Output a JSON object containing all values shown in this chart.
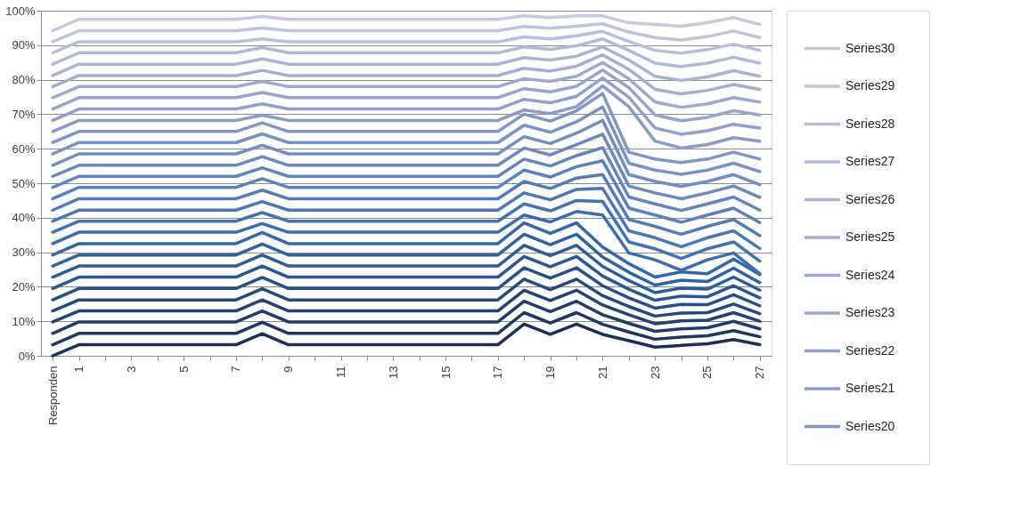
{
  "chart_data": {
    "type": "line",
    "categories": [
      "Responden",
      "1",
      null,
      "3",
      null,
      "5",
      null,
      "7",
      null,
      "9",
      null,
      "11",
      null,
      "13",
      null,
      "15",
      null,
      "17",
      null,
      "19",
      null,
      "21",
      null,
      "23",
      null,
      "25",
      null,
      "27"
    ],
    "ylim": [
      0,
      100
    ],
    "yticks": [
      {
        "value": 0,
        "label": "0%"
      },
      {
        "value": 10,
        "label": "10%"
      },
      {
        "value": 20,
        "label": "20%"
      },
      {
        "value": 30,
        "label": "30%"
      },
      {
        "value": 40,
        "label": "40%"
      },
      {
        "value": 50,
        "label": "50%"
      },
      {
        "value": 60,
        "label": "60%"
      },
      {
        "value": 70,
        "label": "70%"
      },
      {
        "value": 80,
        "label": "80%"
      },
      {
        "value": 90,
        "label": "90%"
      },
      {
        "value": 100,
        "label": "100%"
      }
    ],
    "grid": "y",
    "legend": "right",
    "series": [
      {
        "color": "#1c2f5a",
        "values": [
          0,
          3.2,
          3.2,
          3.2,
          3.2,
          3.2,
          3.2,
          3.2,
          6.4,
          3.2,
          3.2,
          3.2,
          3.2,
          3.2,
          3.2,
          3.2,
          3.2,
          3.2,
          9.2,
          6.2,
          9.2,
          6.2,
          4.4,
          2.5,
          3.0,
          3.5,
          4.7,
          3.2
        ]
      },
      {
        "color": "#1f3562",
        "values": [
          3.2,
          6.5,
          6.5,
          6.5,
          6.5,
          6.5,
          6.5,
          6.5,
          9.7,
          6.5,
          6.5,
          6.5,
          6.5,
          6.5,
          6.5,
          6.5,
          6.5,
          6.5,
          12.5,
          9.5,
          12.5,
          9.1,
          6.9,
          4.8,
          5.4,
          5.8,
          7.3,
          5.5
        ]
      },
      {
        "color": "#213b6b",
        "values": [
          6.5,
          9.8,
          9.8,
          9.8,
          9.8,
          9.8,
          9.8,
          9.8,
          13,
          9.8,
          9.8,
          9.8,
          9.8,
          9.8,
          9.8,
          9.8,
          9.8,
          9.8,
          15.8,
          12.8,
          15.8,
          11.9,
          9.4,
          7.1,
          7.8,
          8.1,
          10,
          7.8
        ]
      },
      {
        "color": "#244274",
        "values": [
          9.8,
          13,
          13,
          13,
          13,
          13,
          13,
          13,
          16.2,
          13,
          13,
          13,
          13,
          13,
          13,
          13,
          13,
          13,
          19,
          16,
          19,
          14.7,
          11.9,
          9.3,
          10.1,
          10.3,
          12.5,
          10
        ]
      },
      {
        "color": "#26497d",
        "values": [
          13,
          16.2,
          16.2,
          16.2,
          16.2,
          16.2,
          16.2,
          16.2,
          19.4,
          16.2,
          16.2,
          16.2,
          16.2,
          16.2,
          16.2,
          16.2,
          16.2,
          16.2,
          22.2,
          19.2,
          22.2,
          17.4,
          14.3,
          11.5,
          12.4,
          12.5,
          15,
          12.2
        ]
      },
      {
        "color": "#295086",
        "values": [
          16.2,
          19.5,
          19.5,
          19.5,
          19.5,
          19.5,
          19.5,
          19.5,
          22.7,
          19.5,
          19.5,
          19.5,
          19.5,
          19.5,
          19.5,
          19.5,
          19.5,
          19.5,
          25.5,
          22.5,
          25.5,
          20.3,
          16.8,
          13.8,
          14.9,
          14.8,
          17.7,
          14.5
        ]
      },
      {
        "color": "#2b568f",
        "values": [
          19.5,
          22.8,
          22.8,
          22.8,
          22.8,
          22.8,
          22.8,
          22.8,
          26,
          22.8,
          22.8,
          22.8,
          22.8,
          22.8,
          22.8,
          22.8,
          22.8,
          22.8,
          28.8,
          25.8,
          28.8,
          23.1,
          19.3,
          16.1,
          17.3,
          17.1,
          20.3,
          16.8
        ]
      },
      {
        "color": "#2e5c98",
        "values": [
          22.8,
          26,
          26,
          26,
          26,
          26,
          26,
          26,
          29.2,
          26,
          26,
          26,
          26,
          26,
          26,
          26,
          26,
          26,
          32,
          29,
          32,
          25.9,
          21.8,
          18.3,
          19.6,
          19.3,
          22.8,
          19
        ]
      },
      {
        "color": "#3062a0",
        "values": [
          26,
          29.2,
          29.2,
          29.2,
          29.2,
          29.2,
          29.2,
          29.2,
          32.4,
          29.2,
          29.2,
          29.2,
          29.2,
          29.2,
          29.2,
          29.2,
          29.2,
          29.2,
          35.2,
          32.2,
          35.2,
          28.6,
          24.2,
          20.5,
          21.9,
          21.5,
          25.4,
          21.2
        ]
      },
      {
        "color": "#3368a8",
        "values": [
          29.2,
          32.5,
          32.5,
          32.5,
          32.5,
          32.5,
          32.5,
          32.5,
          35.7,
          32.5,
          32.5,
          32.5,
          32.5,
          32.5,
          32.5,
          32.5,
          32.5,
          32.5,
          38.5,
          35.5,
          38.5,
          31.5,
          26.7,
          22.8,
          24.3,
          23.8,
          28,
          23.5
        ]
      },
      {
        "color": "#3a6db0",
        "values": [
          32.5,
          35.8,
          35.8,
          35.8,
          35.8,
          35.8,
          35.8,
          35.8,
          38.3,
          35.8,
          35.8,
          35.8,
          35.8,
          35.8,
          35.8,
          35.8,
          35.8,
          35.8,
          40.8,
          38.8,
          41.8,
          40.8,
          29.8,
          27.8,
          24.8,
          27.8,
          29.8,
          23.8
        ]
      },
      {
        "color": "#4272b4",
        "values": [
          35.8,
          39,
          39,
          39,
          39,
          39,
          39,
          39,
          41.5,
          39,
          39,
          39,
          39,
          39,
          39,
          39,
          39,
          39,
          44,
          42,
          45,
          44.7,
          33,
          31,
          28.2,
          31,
          33,
          27.4
        ]
      },
      {
        "color": "#4a77b7",
        "values": [
          39,
          42.2,
          42.2,
          42.2,
          42.2,
          42.2,
          42.2,
          42.2,
          44.7,
          42.2,
          42.2,
          42.2,
          42.2,
          42.2,
          42.2,
          42.2,
          42.2,
          42.2,
          47.2,
          45.2,
          48.2,
          48.5,
          36.2,
          34.2,
          31.6,
          34.2,
          36.2,
          31.1
        ]
      },
      {
        "color": "#527bba",
        "values": [
          42.2,
          45.5,
          45.5,
          45.5,
          45.5,
          45.5,
          45.5,
          45.5,
          48,
          45.5,
          45.5,
          45.5,
          45.5,
          45.5,
          45.5,
          45.5,
          45.5,
          45.5,
          50.5,
          48.5,
          51.5,
          52.5,
          39.5,
          37.5,
          35.2,
          37.5,
          39.5,
          34.8
        ]
      },
      {
        "color": "#5a80bd",
        "values": [
          45.5,
          48.8,
          48.8,
          48.8,
          48.8,
          48.8,
          48.8,
          48.8,
          51.3,
          48.8,
          48.8,
          48.8,
          48.8,
          48.8,
          48.8,
          48.8,
          48.8,
          48.8,
          53.8,
          51.8,
          54.8,
          56.5,
          42.8,
          40.8,
          38.7,
          40.8,
          42.8,
          38.6
        ]
      },
      {
        "color": "#6285bf",
        "values": [
          48.8,
          52,
          52,
          52,
          52,
          52,
          52,
          52,
          54.5,
          52,
          52,
          52,
          52,
          52,
          52,
          52,
          52,
          52,
          57,
          55,
          58,
          60.3,
          46,
          44,
          42.1,
          44,
          46,
          42.2
        ]
      },
      {
        "color": "#6a89c1",
        "values": [
          52,
          55.2,
          55.2,
          55.2,
          55.2,
          55.2,
          55.2,
          55.2,
          57.7,
          55.2,
          55.2,
          55.2,
          55.2,
          55.2,
          55.2,
          55.2,
          55.2,
          55.2,
          60.2,
          58.2,
          61.2,
          64.2,
          49.2,
          47.2,
          45.5,
          47.2,
          49.2,
          45.9
        ]
      },
      {
        "color": "#728dc3",
        "values": [
          55.2,
          58.5,
          58.5,
          58.5,
          58.5,
          58.5,
          58.5,
          58.5,
          61,
          58.5,
          58.5,
          58.5,
          58.5,
          58.5,
          58.5,
          58.5,
          58.5,
          58.5,
          63.5,
          61.5,
          64.5,
          68.2,
          52.5,
          50.5,
          49.1,
          50.5,
          52.5,
          49.6
        ]
      },
      {
        "color": "#7a91c5",
        "values": [
          58.5,
          61.8,
          61.8,
          61.8,
          61.8,
          61.8,
          61.8,
          61.8,
          64.3,
          61.8,
          61.8,
          61.8,
          61.8,
          61.8,
          61.8,
          61.8,
          61.8,
          61.8,
          66.8,
          64.8,
          67.8,
          72.1,
          55.8,
          53.8,
          52.6,
          53.8,
          55.8,
          53.4
        ]
      },
      {
        "name": "Series20",
        "color": "#8295c7",
        "values": [
          61.8,
          65,
          65,
          65,
          65,
          65,
          65,
          65,
          67.5,
          65,
          65,
          65,
          65,
          65,
          65,
          65,
          65,
          65,
          70,
          68,
          71,
          76,
          59,
          57,
          56,
          57,
          59,
          57
        ]
      },
      {
        "name": "Series21",
        "color": "#8a9ac9",
        "values": [
          65,
          68.2,
          68.2,
          68.2,
          68.2,
          68.2,
          68.2,
          68.2,
          69.7,
          68.2,
          68.2,
          68.2,
          68.2,
          68.2,
          68.2,
          68.2,
          68.2,
          68.2,
          71.2,
          70.2,
          72.2,
          78.2,
          72.2,
          62.2,
          60.2,
          61.2,
          63.2,
          62.2
        ]
      },
      {
        "name": "Series22",
        "color": "#909fcb",
        "values": [
          68.2,
          71.5,
          71.5,
          71.5,
          71.5,
          71.5,
          71.5,
          71.5,
          73,
          71.5,
          71.5,
          71.5,
          71.5,
          71.5,
          71.5,
          71.5,
          71.5,
          71.5,
          74.3,
          73.3,
          75.2,
          80.5,
          74.9,
          66,
          64.2,
          65.2,
          67.1,
          66
        ]
      },
      {
        "name": "Series23",
        "color": "#97a4cd",
        "values": [
          71.5,
          74.8,
          74.8,
          74.8,
          74.8,
          74.8,
          74.8,
          74.8,
          76.3,
          74.8,
          74.8,
          74.8,
          74.8,
          74.8,
          74.8,
          74.8,
          74.8,
          74.8,
          77.4,
          76.5,
          78.1,
          82.8,
          77.7,
          69.8,
          68.1,
          69.1,
          71,
          69.8
        ]
      },
      {
        "name": "Series24",
        "color": "#9ea9d0",
        "values": [
          74.8,
          78,
          78,
          78,
          78,
          78,
          78,
          78,
          79.5,
          78,
          78,
          78,
          78,
          78,
          78,
          78,
          78,
          78,
          80.3,
          79.5,
          81,
          85,
          80.3,
          73.5,
          72,
          73,
          74.8,
          73.5
        ]
      },
      {
        "name": "Series25",
        "color": "#a5aed2",
        "values": [
          78,
          81.2,
          81.2,
          81.2,
          81.2,
          81.2,
          81.2,
          81.2,
          82.7,
          81.2,
          81.2,
          81.2,
          81.2,
          81.2,
          81.2,
          81.2,
          81.2,
          81.2,
          83.3,
          82.5,
          83.9,
          87.2,
          83,
          77.2,
          75.9,
          76.9,
          78.6,
          77.2
        ]
      },
      {
        "name": "Series26",
        "color": "#abb3d5",
        "values": [
          81.2,
          84.5,
          84.5,
          84.5,
          84.5,
          84.5,
          84.5,
          84.5,
          86,
          84.5,
          84.5,
          84.5,
          84.5,
          84.5,
          84.5,
          84.5,
          84.5,
          84.5,
          86.4,
          85.7,
          86.8,
          89.5,
          85.7,
          81,
          79.8,
          80.8,
          82.6,
          81
        ]
      },
      {
        "name": "Series27",
        "color": "#b2b8d8",
        "values": [
          84.5,
          87.8,
          87.8,
          87.8,
          87.8,
          87.8,
          87.8,
          87.8,
          89.3,
          87.8,
          87.8,
          87.8,
          87.8,
          87.8,
          87.8,
          87.8,
          87.8,
          87.8,
          89.5,
          88.8,
          89.8,
          91.8,
          88.5,
          84.8,
          83.8,
          84.8,
          86.5,
          84.8
        ]
      },
      {
        "name": "Series28",
        "color": "#b8bedb",
        "values": [
          87.8,
          91,
          91,
          91,
          91,
          91,
          91,
          91,
          91.8,
          91,
          91,
          91,
          91,
          91,
          91,
          91,
          91,
          91,
          92.4,
          91.8,
          92.7,
          94,
          91.1,
          88.5,
          87.7,
          88.7,
          90.3,
          88.5
        ]
      },
      {
        "name": "Series29",
        "color": "#bfc3de",
        "values": [
          91,
          94.2,
          94.2,
          94.2,
          94.2,
          94.2,
          94.2,
          94.2,
          95,
          94.2,
          94.2,
          94.2,
          94.2,
          94.2,
          94.2,
          94.2,
          94.2,
          94.2,
          95.4,
          94.9,
          95.5,
          96.2,
          93.8,
          92.2,
          91.5,
          92.5,
          94.1,
          92.2
        ]
      },
      {
        "name": "Series30",
        "color": "#c6c9e1",
        "values": [
          94.2,
          97.5,
          97.5,
          97.5,
          97.5,
          97.5,
          97.5,
          97.5,
          98.3,
          97.5,
          97.5,
          97.5,
          97.5,
          97.5,
          97.5,
          97.5,
          97.5,
          97.5,
          98.5,
          98,
          98.5,
          98.5,
          96.5,
          96,
          95.5,
          96.5,
          98,
          96
        ]
      }
    ]
  }
}
